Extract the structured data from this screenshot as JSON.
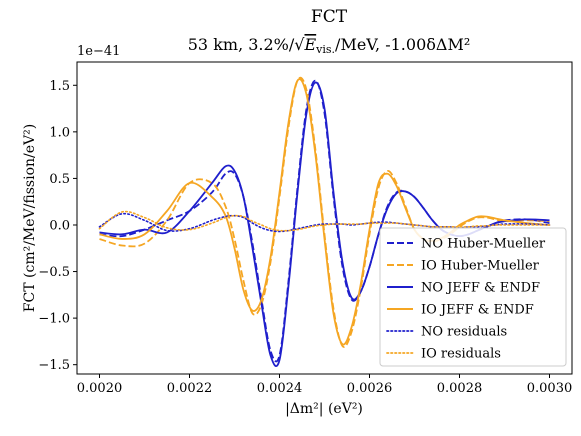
{
  "chart_data": {
    "type": "line",
    "title": "FCT",
    "subtitle_prefix": "53 km, 3.2%/",
    "subtitle_sqrt_content": "E",
    "subtitle_sqrt_sub": "vis.",
    "subtitle_sqrt_tail": "/MeV",
    "subtitle_suffix": ", -1.00δΔM²",
    "offset_label": "1e−41",
    "xlabel": "|Δm²| (eV²)",
    "ylabel": "FCT (cm²/MeV/fission/eV²)",
    "xlim": [
      0.00195,
      0.00305
    ],
    "ylim": [
      -1.6,
      1.75
    ],
    "xticks": [
      0.002,
      0.0022,
      0.0024,
      0.0026,
      0.0028,
      0.003
    ],
    "xtick_labels": [
      "0.0020",
      "0.0022",
      "0.0024",
      "0.0026",
      "0.0028",
      "0.0030"
    ],
    "yticks": [
      -1.5,
      -1.0,
      -0.5,
      0.0,
      0.5,
      1.0,
      1.5
    ],
    "ytick_labels": [
      "−1.5",
      "−1.0",
      "−0.5",
      "0.0",
      "0.5",
      "1.0",
      "1.5"
    ],
    "legend_position": "lower-right",
    "grid": false,
    "x": [
      0.002,
      0.00205,
      0.0021,
      0.00215,
      0.0022,
      0.00225,
      0.00228,
      0.0023,
      0.00232,
      0.00234,
      0.00236,
      0.00238,
      0.0024,
      0.00242,
      0.00244,
      0.00246,
      0.00248,
      0.0025,
      0.00252,
      0.00254,
      0.00256,
      0.00258,
      0.0026,
      0.00262,
      0.00264,
      0.00266,
      0.00268,
      0.0027,
      0.00272,
      0.00274,
      0.00276,
      0.00278,
      0.0028,
      0.00282,
      0.00284,
      0.00286,
      0.00288,
      0.0029,
      0.00295,
      0.003
    ],
    "series": [
      {
        "name": "NO Huber-Mueller",
        "color": "#1f1fcc",
        "style": "dashed",
        "values": [
          -0.1,
          -0.12,
          -0.05,
          0.05,
          0.15,
          0.35,
          0.55,
          0.55,
          0.3,
          -0.2,
          -0.8,
          -1.35,
          -1.4,
          -0.6,
          0.4,
          1.25,
          1.55,
          1.2,
          0.3,
          -0.45,
          -0.8,
          -0.72,
          -0.45,
          -0.1,
          0.2,
          0.35,
          0.36,
          0.3,
          0.18,
          0.05,
          -0.05,
          -0.1,
          -0.12,
          -0.1,
          -0.06,
          -0.02,
          0.02,
          0.05,
          0.06,
          0.02
        ]
      },
      {
        "name": "IO Huber-Mueller",
        "color": "#f5a623",
        "style": "dashed",
        "values": [
          -0.15,
          -0.22,
          -0.2,
          0.05,
          0.45,
          0.45,
          0.2,
          -0.15,
          -0.6,
          -0.95,
          -0.85,
          -0.4,
          0.3,
          1.05,
          1.55,
          1.45,
          0.8,
          -0.1,
          -0.9,
          -1.3,
          -1.15,
          -0.7,
          -0.1,
          0.4,
          0.58,
          0.45,
          0.2,
          -0.05,
          -0.15,
          -0.18,
          -0.15,
          -0.1,
          -0.02,
          0.04,
          0.08,
          0.08,
          0.06,
          0.04,
          0.05,
          0.04
        ]
      },
      {
        "name": "NO JEFF & ENDF",
        "color": "#1f1fcc",
        "style": "solid",
        "values": [
          -0.08,
          -0.1,
          -0.05,
          -0.08,
          0.15,
          0.45,
          0.63,
          0.58,
          0.3,
          -0.25,
          -0.85,
          -1.4,
          -1.45,
          -0.65,
          0.35,
          1.2,
          1.53,
          1.25,
          0.35,
          -0.4,
          -0.78,
          -0.72,
          -0.45,
          -0.1,
          0.18,
          0.34,
          0.36,
          0.3,
          0.18,
          0.05,
          -0.05,
          -0.1,
          -0.12,
          -0.1,
          -0.06,
          -0.02,
          0.02,
          0.04,
          0.06,
          0.05
        ]
      },
      {
        "name": "IO JEFF & ENDF",
        "color": "#f5a623",
        "style": "solid",
        "values": [
          -0.1,
          -0.15,
          -0.1,
          0.15,
          0.45,
          0.3,
          0.1,
          -0.25,
          -0.7,
          -0.92,
          -0.8,
          -0.35,
          0.35,
          1.1,
          1.55,
          1.4,
          0.75,
          -0.15,
          -0.95,
          -1.28,
          -1.1,
          -0.65,
          -0.05,
          0.45,
          0.55,
          0.42,
          0.18,
          -0.05,
          -0.15,
          -0.17,
          -0.14,
          -0.08,
          0.0,
          0.05,
          0.09,
          0.09,
          0.07,
          0.05,
          0.02,
          0.0
        ]
      },
      {
        "name": "NO residuals",
        "color": "#1f1fcc",
        "style": "dotted",
        "values": [
          -0.02,
          0.12,
          0.05,
          -0.06,
          -0.04,
          0.05,
          0.09,
          0.1,
          0.08,
          0.02,
          -0.03,
          -0.06,
          -0.07,
          -0.06,
          -0.04,
          -0.02,
          0.0,
          0.01,
          0.01,
          0.01,
          0.0,
          0.01,
          0.02,
          0.03,
          0.03,
          0.02,
          0.01,
          0.0,
          -0.01,
          -0.02,
          -0.02,
          -0.02,
          -0.03,
          -0.02,
          -0.02,
          -0.01,
          0.0,
          0.01,
          0.01,
          0.0
        ]
      },
      {
        "name": "IO residuals",
        "color": "#f5a623",
        "style": "dotted",
        "values": [
          -0.04,
          0.14,
          0.08,
          -0.03,
          -0.05,
          0.02,
          0.08,
          0.1,
          0.09,
          0.04,
          0.0,
          -0.04,
          -0.06,
          -0.06,
          -0.05,
          -0.03,
          -0.01,
          0.0,
          0.01,
          0.01,
          0.01,
          0.01,
          0.02,
          0.02,
          0.02,
          0.02,
          0.01,
          0.0,
          -0.01,
          -0.02,
          -0.02,
          -0.02,
          -0.02,
          -0.02,
          -0.01,
          -0.01,
          0.0,
          0.0,
          0.0,
          0.0
        ]
      }
    ]
  }
}
